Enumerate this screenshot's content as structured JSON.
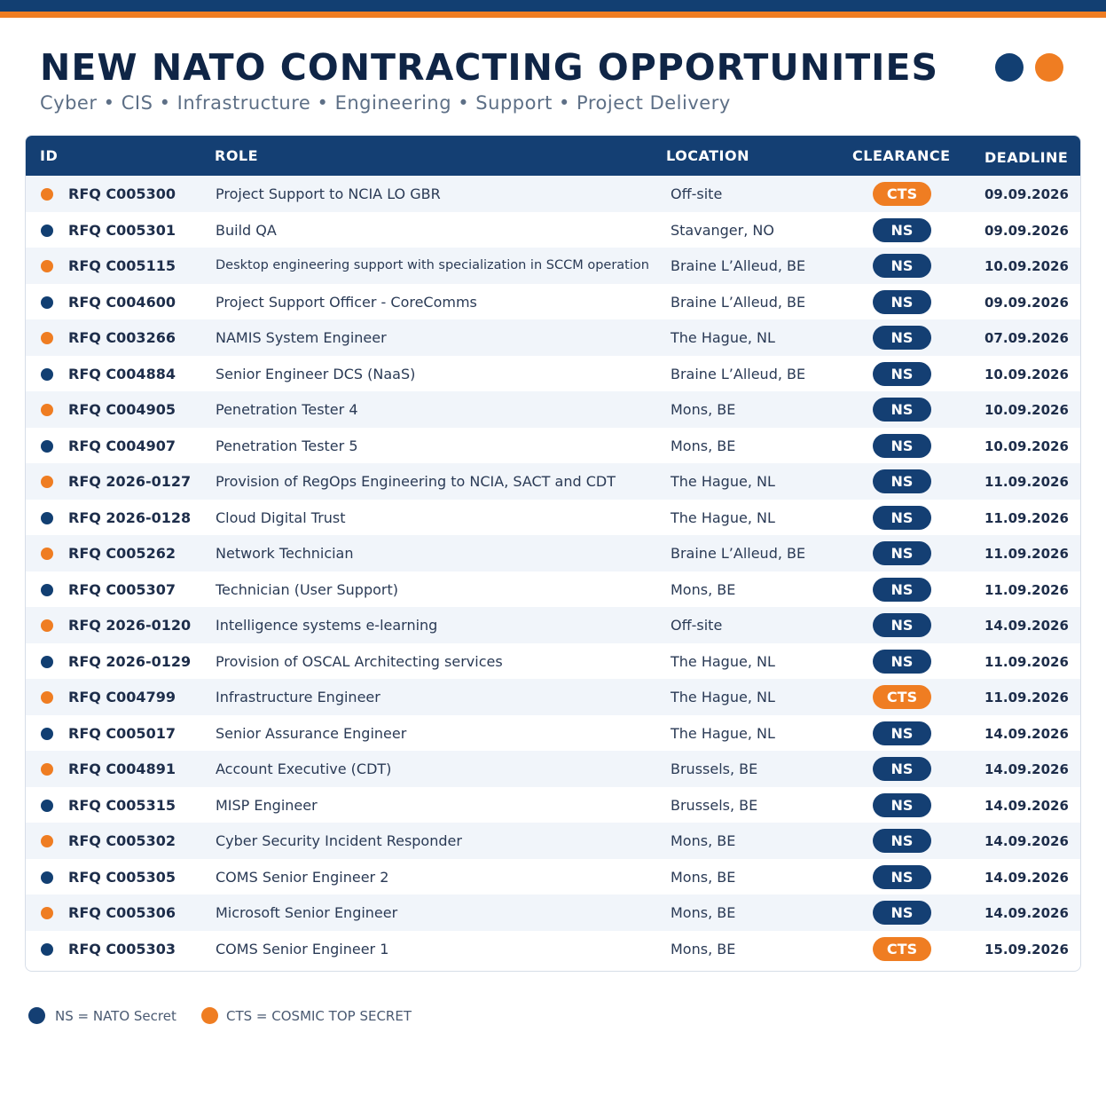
{
  "header": {
    "title": "NEW NATO CONTRACTING OPPORTUNITIES",
    "subtitle": "Cyber • CIS • Infrastructure • Engineering • Support • Project Delivery"
  },
  "colors": {
    "navy": "#143f73",
    "orange": "#ef7d22"
  },
  "table": {
    "columns": [
      "ID",
      "ROLE",
      "LOCATION",
      "CLEARANCE",
      "DEADLINE"
    ],
    "rows": [
      {
        "dot": "orange",
        "id": "RFQ C005300",
        "role": "Project Support to NCIA LO GBR",
        "location": "Off-site",
        "clearance": "CTS",
        "deadline": "09.09.2026"
      },
      {
        "dot": "navy",
        "id": "RFQ C005301",
        "role": "Build QA",
        "location": "Stavanger, NO",
        "clearance": "NS",
        "deadline": "09.09.2026"
      },
      {
        "dot": "orange",
        "id": "RFQ C005115",
        "role": "Desktop engineering support with specialization in SCCM operation",
        "location": "Braine L’Alleud, BE",
        "clearance": "NS",
        "deadline": "10.09.2026"
      },
      {
        "dot": "navy",
        "id": "RFQ C004600",
        "role": "Project Support Officer - CoreComms",
        "location": "Braine L’Alleud, BE",
        "clearance": "NS",
        "deadline": "09.09.2026"
      },
      {
        "dot": "orange",
        "id": "RFQ C003266",
        "role": "NAMIS System Engineer",
        "location": "The Hague, NL",
        "clearance": "NS",
        "deadline": "07.09.2026"
      },
      {
        "dot": "navy",
        "id": "RFQ C004884",
        "role": "Senior Engineer DCS (NaaS)",
        "location": "Braine L’Alleud, BE",
        "clearance": "NS",
        "deadline": "10.09.2026"
      },
      {
        "dot": "orange",
        "id": "RFQ C004905",
        "role": "Penetration Tester 4",
        "location": "Mons, BE",
        "clearance": "NS",
        "deadline": "10.09.2026"
      },
      {
        "dot": "navy",
        "id": "RFQ C004907",
        "role": "Penetration Tester 5",
        "location": "Mons, BE",
        "clearance": "NS",
        "deadline": "10.09.2026"
      },
      {
        "dot": "orange",
        "id": "RFQ 2026-0127",
        "role": "Provision of RegOps Engineering to NCIA, SACT and CDT",
        "location": "The Hague, NL",
        "clearance": "NS",
        "deadline": "11.09.2026"
      },
      {
        "dot": "navy",
        "id": "RFQ 2026-0128",
        "role": "Cloud Digital Trust",
        "location": "The Hague, NL",
        "clearance": "NS",
        "deadline": "11.09.2026"
      },
      {
        "dot": "orange",
        "id": "RFQ C005262",
        "role": "Network Technician",
        "location": "Braine L’Alleud, BE",
        "clearance": "NS",
        "deadline": "11.09.2026"
      },
      {
        "dot": "navy",
        "id": "RFQ C005307",
        "role": "Technician (User Support)",
        "location": "Mons, BE",
        "clearance": "NS",
        "deadline": "11.09.2026"
      },
      {
        "dot": "orange",
        "id": "RFQ 2026-0120",
        "role": "Intelligence systems e-learning",
        "location": "Off-site",
        "clearance": "NS",
        "deadline": "14.09.2026"
      },
      {
        "dot": "navy",
        "id": "RFQ 2026-0129",
        "role": "Provision of OSCAL Architecting services",
        "location": "The Hague, NL",
        "clearance": "NS",
        "deadline": "11.09.2026"
      },
      {
        "dot": "orange",
        "id": "RFQ C004799",
        "role": "Infrastructure Engineer",
        "location": "The Hague, NL",
        "clearance": "CTS",
        "deadline": "11.09.2026"
      },
      {
        "dot": "navy",
        "id": "RFQ C005017",
        "role": "Senior Assurance Engineer",
        "location": "The Hague, NL",
        "clearance": "NS",
        "deadline": "14.09.2026"
      },
      {
        "dot": "orange",
        "id": "RFQ C004891",
        "role": "Account Executive (CDT)",
        "location": "Brussels, BE",
        "clearance": "NS",
        "deadline": "14.09.2026"
      },
      {
        "dot": "navy",
        "id": "RFQ C005315",
        "role": "MISP Engineer",
        "location": "Brussels, BE",
        "clearance": "NS",
        "deadline": "14.09.2026"
      },
      {
        "dot": "orange",
        "id": "RFQ C005302",
        "role": "Cyber Security Incident Responder",
        "location": "Mons, BE",
        "clearance": "NS",
        "deadline": "14.09.2026"
      },
      {
        "dot": "navy",
        "id": "RFQ C005305",
        "role": "COMS Senior Engineer 2",
        "location": "Mons, BE",
        "clearance": "NS",
        "deadline": "14.09.2026"
      },
      {
        "dot": "orange",
        "id": "RFQ C005306",
        "role": "Microsoft Senior Engineer",
        "location": "Mons, BE",
        "clearance": "NS",
        "deadline": "14.09.2026"
      },
      {
        "dot": "navy",
        "id": "RFQ C005303",
        "role": "COMS Senior Engineer 1",
        "location": "Mons, BE",
        "clearance": "CTS",
        "deadline": "15.09.2026"
      }
    ]
  },
  "legend": [
    {
      "dot": "navy",
      "text": "NS = NATO Secret"
    },
    {
      "dot": "orange",
      "text": "CTS = COSMIC TOP SECRET"
    }
  ]
}
